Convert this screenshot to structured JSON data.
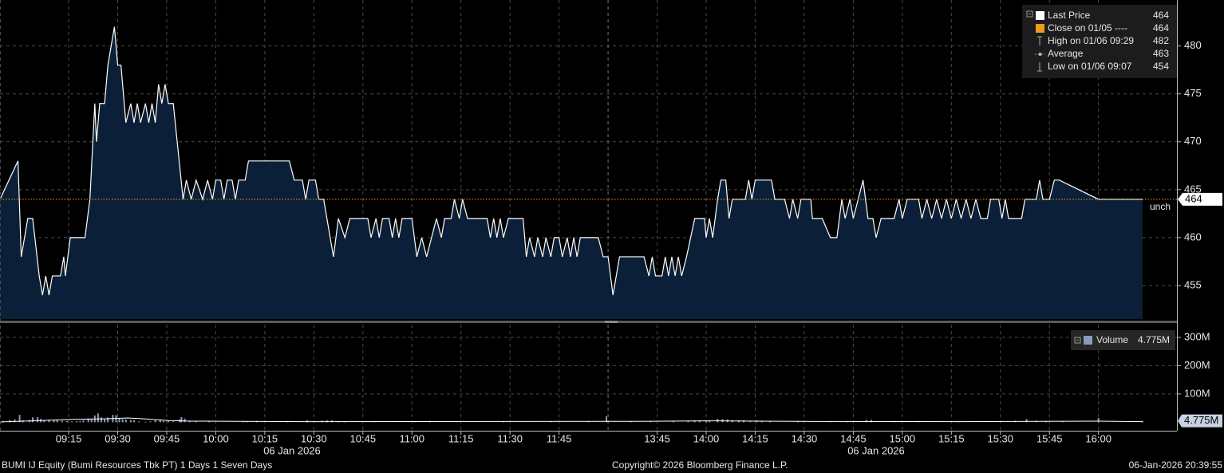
{
  "chart_data": [
    {
      "type": "area",
      "ylim": [
        451.5,
        484.8
      ],
      "yticks": [
        455,
        460,
        465,
        470,
        475,
        480
      ],
      "grid": true,
      "fill_color": "#0b2038",
      "close_color": "#f29a1f",
      "change_label": "unch",
      "legend": [
        {
          "label": "Last Price",
          "value": 464
        },
        {
          "label": "Close on 01/05 ----",
          "value": 464
        },
        {
          "label": "High on 01/06 09:29",
          "value": 482
        },
        {
          "label": "Average",
          "value": 463
        },
        {
          "label": "Low on 01/06 09:07",
          "value": 454
        }
      ],
      "series": [
        {
          "name": "Last Price",
          "color": "#ffffff",
          "x": [
            534,
            539.5,
            540.5,
            542.5,
            544,
            546,
            547,
            548,
            549,
            550,
            552.5,
            553.5,
            554,
            555.5,
            560,
            561.5,
            563,
            563.5,
            564.5,
            566,
            567,
            569,
            570,
            571,
            572.5,
            574,
            575,
            576,
            577,
            578.5,
            579.5,
            580.5,
            581.5,
            582.5,
            583.5,
            584.5,
            585.5,
            587,
            590,
            591,
            592.5,
            594,
            596,
            597.5,
            599,
            600,
            601.5,
            602.5,
            603.5,
            605,
            606,
            607,
            609,
            610,
            622.5,
            624,
            626.5,
            627.5,
            628.5,
            630.5,
            631.5,
            633,
            634,
            636,
            637.5,
            639.5,
            641,
            646.5,
            647.5,
            649,
            650,
            651,
            653,
            654,
            655,
            656,
            657,
            660,
            661.5,
            663,
            664.5,
            666,
            667.5,
            669,
            670,
            672,
            673,
            674.5,
            675.5,
            677,
            683,
            684,
            685,
            686,
            687,
            688,
            689.5,
            694,
            695,
            696,
            697.5,
            698.5,
            700,
            701,
            702.5,
            703.5,
            705,
            706,
            707.5,
            708.5,
            709.5,
            710.5,
            711.5,
            717,
            718.5,
            719.5,
            810,
            811.5,
            813.5,
            821,
            822.5,
            823.5,
            824.5,
            826.5,
            827.5,
            828.5,
            829.5,
            830.5,
            831.5,
            832.5,
            834,
            836.5,
            839.5,
            840,
            841,
            842,
            843.5,
            844.5,
            846,
            847,
            848,
            852,
            853,
            854,
            855,
            860,
            861,
            864,
            865.5,
            866.5,
            868,
            869,
            872,
            872.5,
            875.5,
            878,
            880,
            881.5,
            882.5,
            884,
            885,
            886.5,
            888,
            889.5,
            891,
            892,
            893.5,
            897.5,
            899,
            900,
            901.5,
            905,
            906,
            907.5,
            909,
            910.5,
            912,
            913.5,
            915,
            916.5,
            918,
            919.5,
            921,
            922.5,
            924,
            926,
            927,
            929.5,
            930.5,
            931.5,
            932.5,
            936.5,
            937.5,
            941,
            942,
            943,
            945,
            946.5,
            948,
            960,
            973.5
          ],
          "values": [
            464,
            468,
            458,
            462,
            462,
            456,
            454,
            456,
            454,
            456,
            456,
            458,
            456,
            460,
            460,
            464,
            474,
            470,
            474,
            474,
            478,
            482,
            478,
            478,
            472,
            474,
            472,
            474,
            472,
            474,
            472,
            474,
            472,
            476,
            474,
            476,
            474,
            474,
            464,
            466,
            464,
            466,
            464,
            466,
            464,
            466,
            466,
            464,
            466,
            466,
            464,
            466,
            466,
            468,
            468,
            466,
            466,
            464,
            466,
            466,
            464,
            464,
            462,
            458,
            462,
            460,
            462,
            462,
            460,
            462,
            460,
            462,
            462,
            460,
            462,
            460,
            462,
            462,
            458,
            460,
            458,
            460,
            462,
            460,
            462,
            462,
            464,
            462,
            464,
            462,
            462,
            460,
            462,
            460,
            462,
            460,
            462,
            462,
            458,
            460,
            458,
            460,
            458,
            460,
            458,
            460,
            460,
            458,
            460,
            458,
            460,
            458,
            460,
            460,
            458,
            458,
            458,
            454,
            458,
            458,
            456,
            458,
            456,
            456,
            458,
            456,
            458,
            456,
            458,
            456,
            458,
            462,
            462,
            460,
            462,
            460,
            464,
            466,
            466,
            462,
            464,
            464,
            466,
            464,
            466,
            466,
            464,
            464,
            462,
            464,
            462,
            464,
            464,
            462,
            462,
            460,
            460,
            464,
            462,
            464,
            462,
            464,
            466,
            462,
            462,
            460,
            462,
            462,
            464,
            462,
            464,
            464,
            462,
            464,
            462,
            464,
            462,
            464,
            462,
            464,
            462,
            464,
            462,
            464,
            462,
            462,
            464,
            464,
            462,
            464,
            462,
            462,
            464,
            464,
            466,
            464,
            464,
            466,
            466,
            464,
            464
          ]
        }
      ]
    },
    {
      "type": "bar",
      "ylim": [
        -30000000,
        345000000
      ],
      "yticks": [
        {
          "value": 100000000,
          "label": "100M"
        },
        {
          "value": 200000000,
          "label": "200M"
        },
        {
          "value": 300000000,
          "label": "300M"
        }
      ],
      "xlim": [
        534,
        984
      ],
      "session_break": [
        720,
        810
      ],
      "xticks": [
        {
          "value": 555,
          "label": "09:15"
        },
        {
          "value": 570,
          "label": "09:30"
        },
        {
          "value": 585,
          "label": "09:45"
        },
        {
          "value": 600,
          "label": "10:00"
        },
        {
          "value": 615,
          "label": "10:15"
        },
        {
          "value": 630,
          "label": "10:30"
        },
        {
          "value": 645,
          "label": "10:45"
        },
        {
          "value": 660,
          "label": "11:00"
        },
        {
          "value": 675,
          "label": "11:15"
        },
        {
          "value": 690,
          "label": "11:30"
        },
        {
          "value": 705,
          "label": "11:45"
        },
        {
          "value": 825,
          "label": "13:45"
        },
        {
          "value": 840,
          "label": "14:00"
        },
        {
          "value": 855,
          "label": "14:15"
        },
        {
          "value": 870,
          "label": "14:30"
        },
        {
          "value": 885,
          "label": "14:45"
        },
        {
          "value": 900,
          "label": "15:00"
        },
        {
          "value": 915,
          "label": "15:15"
        },
        {
          "value": 930,
          "label": "15:30"
        },
        {
          "value": 945,
          "label": "15:45"
        },
        {
          "value": 960,
          "label": "16:00"
        }
      ],
      "date_labels": [
        "06 Jan 2026",
        "06 Jan 2026"
      ],
      "grid": true,
      "last": {
        "value": 4775000,
        "label": "4.775M"
      },
      "series": [
        {
          "name": "Volume",
          "color": "#8d9bbb",
          "x": [
            535,
            537,
            538.5,
            540,
            541,
            543,
            544,
            545.5,
            546.5,
            547.5,
            549,
            550.5,
            551.5,
            553,
            554.5,
            556,
            557.5,
            558.5,
            559.5,
            561,
            562,
            563,
            564,
            565,
            566,
            567,
            568.5,
            569.5,
            570.5,
            571.5,
            572.5,
            574,
            575,
            576.5,
            578.5,
            580,
            581.5,
            583,
            584,
            585.5,
            587,
            589,
            589.5,
            590.5,
            592,
            594,
            598,
            608.5,
            609.5,
            612.5,
            622,
            628,
            632.5,
            634,
            635.5,
            637.5,
            639.5,
            648.5,
            661,
            665.5,
            673.5,
            688,
            702.5,
            714,
            719.5,
            817,
            823,
            830,
            834.5,
            836.5,
            838,
            840,
            841,
            843.5,
            845,
            846.5,
            848,
            850,
            851.5,
            853.5,
            855.5,
            857,
            859.5,
            868,
            878,
            883,
            889,
            890.5,
            897.5,
            905,
            917,
            929,
            934.5,
            938,
            941,
            944,
            949,
            960,
            973.5
          ],
          "values": [
            4000000,
            8000000,
            10000000,
            26000000,
            7000000,
            8000000,
            17000000,
            18000000,
            12000000,
            6000000,
            9000000,
            7000000,
            7000000,
            5000000,
            4000000,
            3000000,
            4000000,
            4000000,
            7000000,
            13000000,
            10000000,
            24000000,
            31000000,
            17000000,
            10000000,
            17000000,
            26000000,
            25000000,
            15000000,
            11000000,
            10000000,
            8000000,
            7000000,
            3000000,
            2000000,
            3000000,
            7000000,
            9000000,
            4000000,
            5000000,
            3000000,
            10000000,
            18000000,
            13000000,
            5000000,
            5000000,
            3000000,
            4000000,
            3000000,
            5000000,
            4000000,
            7000000,
            6000000,
            7000000,
            7000000,
            4000000,
            3000000,
            3000000,
            4000000,
            5000000,
            4000000,
            3000000,
            4000000,
            4000000,
            21000000,
            3000000,
            4000000,
            3000000,
            5000000,
            6000000,
            6000000,
            7000000,
            4000000,
            12000000,
            11000000,
            10000000,
            7000000,
            7000000,
            7000000,
            5000000,
            6000000,
            5000000,
            4000000,
            4000000,
            4000000,
            4000000,
            8000000,
            8000000,
            3000000,
            3000000,
            3000000,
            4000000,
            5000000,
            11000000,
            5000000,
            4000000,
            3000000,
            15000000,
            4775000
          ]
        },
        {
          "type": "line",
          "color": "#ffffff",
          "x": [
            534,
            539,
            544,
            549,
            553.5,
            558.5,
            566,
            573,
            576.5,
            580.5,
            585.5,
            592.5,
            607,
            631.5,
            719.5,
            819,
            843.5,
            856,
            868,
            917,
            960,
            973.5
          ],
          "values": [
            1000000,
            3000000,
            5000000,
            7000000,
            9000000,
            11000000,
            12000000,
            15000000,
            13000000,
            10000000,
            6000000,
            4000000,
            3000000,
            2000000,
            3000000,
            3000000,
            5000000,
            4000000,
            3000000,
            2000000,
            4000000,
            2000000
          ]
        }
      ]
    }
  ],
  "footer": {
    "left": "BUMI IJ Equity (Bumi Resources Tbk PT) 1 Days 1 Seven Days",
    "center": "Copyright© 2026 Bloomberg Finance L.P.",
    "right": "06-Jan-2026 20:39:55"
  }
}
